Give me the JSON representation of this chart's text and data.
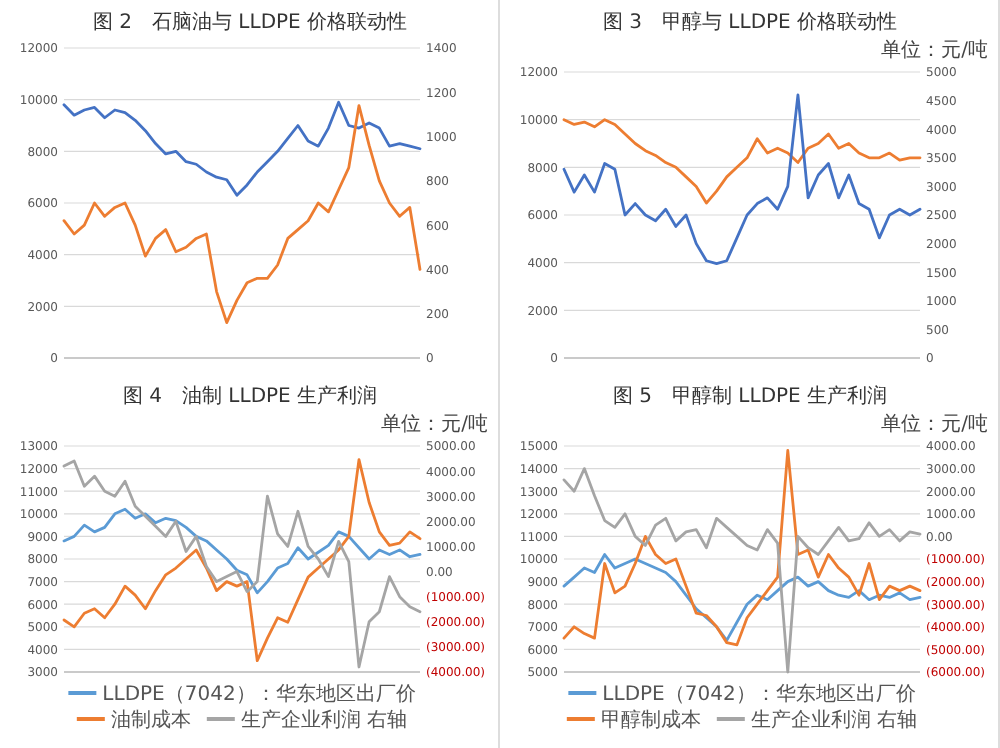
{
  "chart_data": [
    {
      "type": "line",
      "title": "图 2　石脑油与 LLDPE 价格联动性",
      "categories": [
        null,
        null,
        null,
        null,
        null,
        null,
        null,
        null,
        null,
        null,
        null,
        null,
        null,
        null,
        null,
        null,
        null,
        null,
        null,
        null,
        null,
        null,
        null,
        null,
        null,
        null,
        null,
        null,
        null,
        null,
        null,
        null,
        null,
        null,
        null,
        null
      ],
      "ylim": [
        0,
        12000
      ],
      "yticks": [
        0,
        2000,
        4000,
        6000,
        8000,
        10000,
        12000
      ],
      "y2lim": [
        0,
        1400
      ],
      "y2ticks": [
        0,
        200,
        400,
        600,
        800,
        1000,
        1200,
        1400
      ],
      "grid": "y",
      "series": [
        {
          "color": "#4472c4",
          "values": [
            9800,
            9400,
            9600,
            9700,
            9300,
            9600,
            9500,
            9200,
            8800,
            8300,
            7900,
            8000,
            7600,
            7500,
            7200,
            7000,
            6900,
            6300,
            6700,
            7200,
            7600,
            8000,
            8500,
            9000,
            8400,
            8200,
            8900,
            9900,
            9000,
            8900,
            9100,
            8900,
            8200,
            8300,
            8200,
            8100
          ]
        },
        {
          "color": "#ed7d31",
          "axis": "y2",
          "values": [
            620,
            560,
            600,
            700,
            640,
            680,
            700,
            600,
            460,
            540,
            580,
            480,
            500,
            540,
            560,
            300,
            160,
            260,
            340,
            360,
            360,
            420,
            540,
            580,
            620,
            700,
            660,
            760,
            860,
            1140,
            960,
            800,
            700,
            640,
            680,
            400
          ]
        }
      ]
    },
    {
      "type": "line",
      "title": "图 3　甲醇与 LLDPE 价格联动性",
      "subtitle": "单位：元/吨",
      "categories": [
        null,
        null,
        null,
        null,
        null,
        null,
        null,
        null,
        null,
        null,
        null,
        null,
        null,
        null,
        null,
        null,
        null,
        null,
        null,
        null,
        null,
        null,
        null,
        null,
        null,
        null,
        null,
        null,
        null,
        null,
        null,
        null,
        null,
        null,
        null,
        null
      ],
      "ylim": [
        0,
        12000
      ],
      "yticks": [
        0,
        2000,
        4000,
        6000,
        8000,
        10000,
        12000
      ],
      "y2lim": [
        0,
        5000
      ],
      "y2ticks": [
        0,
        500,
        1000,
        1500,
        2000,
        2500,
        3000,
        3500,
        4000,
        4500,
        5000
      ],
      "grid": "y",
      "series": [
        {
          "color": "#ed7d31",
          "values": [
            10000,
            9800,
            9900,
            9700,
            10000,
            9800,
            9400,
            9000,
            8700,
            8500,
            8200,
            8000,
            7600,
            7200,
            6500,
            7000,
            7600,
            8000,
            8400,
            9200,
            8600,
            8800,
            8600,
            8200,
            8800,
            9000,
            9400,
            8800,
            9000,
            8600,
            8400,
            8400,
            8600,
            8300,
            8400,
            8400
          ]
        },
        {
          "color": "#4472c4",
          "axis": "y2",
          "values": [
            3300,
            2900,
            3200,
            2900,
            3400,
            3300,
            2500,
            2700,
            2500,
            2400,
            2600,
            2300,
            2500,
            2000,
            1700,
            1650,
            1700,
            2100,
            2500,
            2700,
            2800,
            2600,
            3000,
            4600,
            2800,
            3200,
            3400,
            2800,
            3200,
            2700,
            2600,
            2100,
            2500,
            2600,
            2500,
            2600
          ]
        }
      ]
    },
    {
      "type": "line",
      "title": "图 4　油制 LLDPE 生产利润",
      "subtitle": "单位：元/吨",
      "categories": [
        null,
        null,
        null,
        null,
        null,
        null,
        null,
        null,
        null,
        null,
        null,
        null,
        null,
        null,
        null,
        null,
        null,
        null,
        null,
        null,
        null,
        null,
        null,
        null,
        null,
        null,
        null,
        null,
        null,
        null,
        null,
        null,
        null,
        null,
        null,
        null
      ],
      "ylim": [
        3000,
        13000
      ],
      "yticks": [
        3000,
        4000,
        5000,
        6000,
        7000,
        8000,
        9000,
        10000,
        11000,
        12000,
        13000
      ],
      "y2lim": [
        -4000,
        5000
      ],
      "y2ticks": [
        {
          "value": -4000,
          "label": "(4000.00)"
        },
        {
          "value": -3000,
          "label": "(3000.00)"
        },
        {
          "value": -2000,
          "label": "(2000.00)"
        },
        {
          "value": -1000,
          "label": "(1000.00)"
        },
        {
          "value": 0,
          "label": "0.00"
        },
        {
          "value": 1000,
          "label": "1000.00"
        },
        {
          "value": 2000,
          "label": "2000.00"
        },
        {
          "value": 3000,
          "label": "3000.00"
        },
        {
          "value": 4000,
          "label": "4000.00"
        },
        {
          "value": 5000,
          "label": "5000.00"
        }
      ],
      "grid": "y",
      "legend": "bottom",
      "series": [
        {
          "name": "LLDPE（7042）：华东地区出厂价",
          "color": "#5b9bd5",
          "values": [
            8800,
            9000,
            9500,
            9200,
            9400,
            10000,
            10200,
            9800,
            10000,
            9600,
            9800,
            9700,
            9400,
            9000,
            8800,
            8400,
            8000,
            7500,
            7300,
            6500,
            7000,
            7600,
            7800,
            8500,
            8000,
            8300,
            8600,
            9200,
            9000,
            8500,
            8000,
            8400,
            8200,
            8400,
            8100,
            8200
          ]
        },
        {
          "name": "油制成本",
          "color": "#ed7d31",
          "values": [
            5300,
            5000,
            5600,
            5800,
            5400,
            6000,
            6800,
            6400,
            5800,
            6600,
            7300,
            7600,
            8000,
            8400,
            7600,
            6600,
            7000,
            6800,
            7000,
            3500,
            4500,
            5400,
            5200,
            6200,
            7200,
            7600,
            8000,
            8400,
            9000,
            12400,
            10500,
            9200,
            8600,
            8700,
            9200,
            8900
          ]
        },
        {
          "name": "生产企业利润 右轴",
          "color": "#a5a5a5",
          "axis": "y2",
          "values": [
            4200,
            4400,
            3400,
            3800,
            3200,
            3000,
            3600,
            2600,
            2200,
            1800,
            1400,
            2000,
            800,
            1400,
            200,
            -400,
            -200,
            0,
            -800,
            -400,
            3000,
            1500,
            1000,
            2400,
            1000,
            500,
            -200,
            1200,
            400,
            -3800,
            -2000,
            -1600,
            -200,
            -1000,
            -1400,
            -1600
          ]
        }
      ]
    },
    {
      "type": "line",
      "title": "图 5　甲醇制 LLDPE 生产利润",
      "subtitle": "单位：元/吨",
      "categories": [
        null,
        null,
        null,
        null,
        null,
        null,
        null,
        null,
        null,
        null,
        null,
        null,
        null,
        null,
        null,
        null,
        null,
        null,
        null,
        null,
        null,
        null,
        null,
        null,
        null,
        null,
        null,
        null,
        null,
        null,
        null,
        null,
        null,
        null,
        null,
        null
      ],
      "ylim": [
        5000,
        15000
      ],
      "yticks": [
        5000,
        6000,
        7000,
        8000,
        9000,
        10000,
        11000,
        12000,
        13000,
        14000,
        15000
      ],
      "y2lim": [
        -6000,
        4000
      ],
      "y2ticks": [
        {
          "value": -6000,
          "label": "(6000.00)"
        },
        {
          "value": -5000,
          "label": "(5000.00)"
        },
        {
          "value": -4000,
          "label": "(4000.00)"
        },
        {
          "value": -3000,
          "label": "(3000.00)"
        },
        {
          "value": -2000,
          "label": "(2000.00)"
        },
        {
          "value": -1000,
          "label": "(1000.00)"
        },
        {
          "value": 0,
          "label": "0.00"
        },
        {
          "value": 1000,
          "label": "1000.00"
        },
        {
          "value": 2000,
          "label": "2000.00"
        },
        {
          "value": 3000,
          "label": "3000.00"
        },
        {
          "value": 4000,
          "label": "4000.00"
        }
      ],
      "grid": "y",
      "legend": "bottom",
      "series": [
        {
          "name": "LLDPE（7042）：华东地区出厂价",
          "color": "#5b9bd5",
          "values": [
            8800,
            9200,
            9600,
            9400,
            10200,
            9600,
            9800,
            10000,
            9800,
            9600,
            9400,
            9000,
            8400,
            7800,
            7400,
            7000,
            6400,
            7200,
            8000,
            8400,
            8200,
            8600,
            9000,
            9200,
            8800,
            9000,
            8600,
            8400,
            8300,
            8600,
            8200,
            8400,
            8300,
            8500,
            8200,
            8300
          ]
        },
        {
          "name": "甲醇制成本",
          "color": "#ed7d31",
          "values": [
            6500,
            7000,
            6700,
            6500,
            9800,
            8500,
            8800,
            9800,
            11000,
            10200,
            9800,
            10000,
            8800,
            7600,
            7500,
            7000,
            6300,
            6200,
            7400,
            8000,
            8600,
            9200,
            14800,
            10200,
            10400,
            9200,
            10200,
            9600,
            9200,
            8400,
            9800,
            8200,
            8800,
            8600,
            8800,
            8600
          ]
        },
        {
          "name": "生产企业利润 右轴",
          "color": "#a5a5a5",
          "axis": "y2",
          "values": [
            2500,
            2000,
            3000,
            1800,
            700,
            400,
            1000,
            0,
            -400,
            500,
            800,
            -200,
            200,
            300,
            -500,
            800,
            400,
            0,
            -400,
            -600,
            300,
            -300,
            -6000,
            0,
            -500,
            -800,
            -200,
            400,
            -200,
            -100,
            600,
            0,
            300,
            -200,
            200,
            100
          ]
        }
      ]
    }
  ]
}
